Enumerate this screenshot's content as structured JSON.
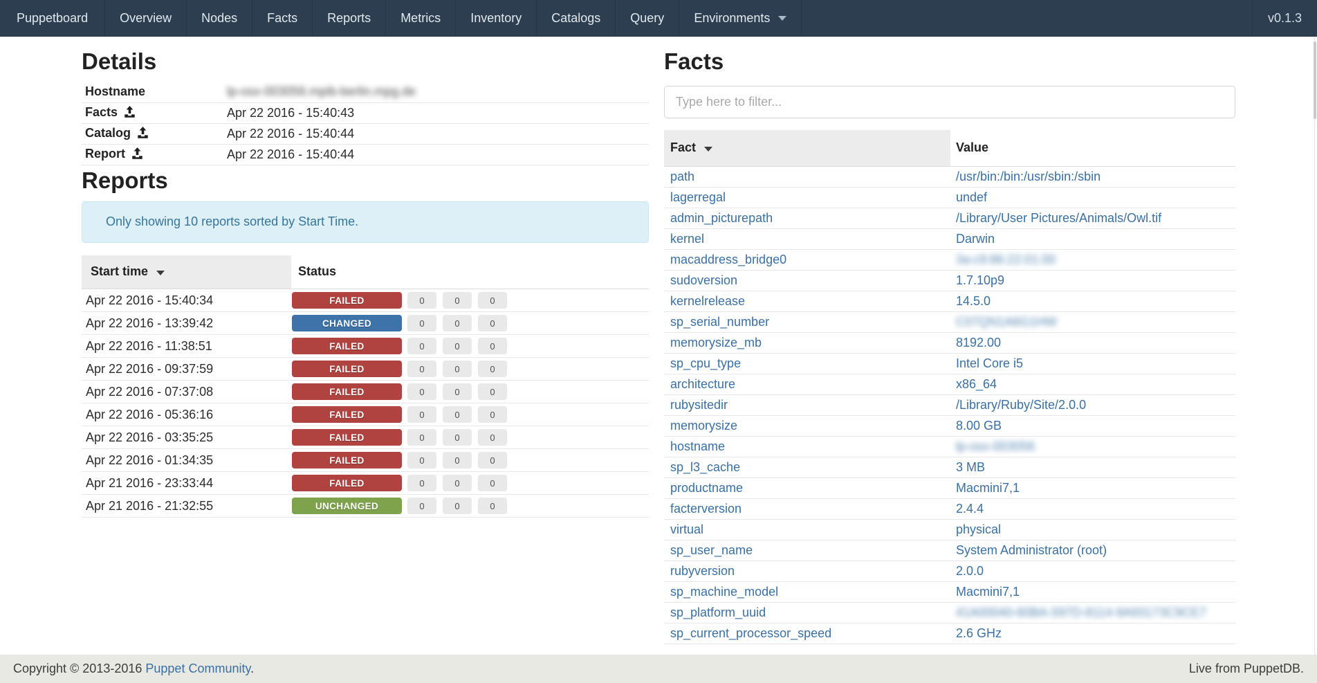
{
  "navbar": {
    "brand": "Puppetboard",
    "items": [
      "Overview",
      "Nodes",
      "Facts",
      "Reports",
      "Metrics",
      "Inventory",
      "Catalogs",
      "Query"
    ],
    "environments_label": "Environments",
    "version": "v0.1.3",
    "bg_color": "#2c3e50"
  },
  "details": {
    "title": "Details",
    "rows": [
      {
        "label": "Hostname",
        "value": "lp-osx-003056.mpib-berlin.mpg.de",
        "icon": false,
        "blur": true
      },
      {
        "label": "Facts",
        "value": "Apr 22 2016 - 15:40:43",
        "icon": true,
        "blur": false
      },
      {
        "label": "Catalog",
        "value": "Apr 22 2016 - 15:40:44",
        "icon": true,
        "blur": false
      },
      {
        "label": "Report",
        "value": "Apr 22 2016 - 15:40:44",
        "icon": true,
        "blur": false
      }
    ]
  },
  "reports": {
    "title": "Reports",
    "notice": "Only showing 10 reports sorted by Start Time.",
    "columns": {
      "start_time": "Start time",
      "status": "Status"
    },
    "status_colors": {
      "FAILED": "#b0433f",
      "CHANGED": "#3d73a9",
      "UNCHANGED": "#7fa24c"
    },
    "rows": [
      {
        "start_time": "Apr 22 2016 - 15:40:34",
        "status": "FAILED",
        "counts": [
          "0",
          "0",
          "0"
        ]
      },
      {
        "start_time": "Apr 22 2016 - 13:39:42",
        "status": "CHANGED",
        "counts": [
          "0",
          "0",
          "0"
        ]
      },
      {
        "start_time": "Apr 22 2016 - 11:38:51",
        "status": "FAILED",
        "counts": [
          "0",
          "0",
          "0"
        ]
      },
      {
        "start_time": "Apr 22 2016 - 09:37:59",
        "status": "FAILED",
        "counts": [
          "0",
          "0",
          "0"
        ]
      },
      {
        "start_time": "Apr 22 2016 - 07:37:08",
        "status": "FAILED",
        "counts": [
          "0",
          "0",
          "0"
        ]
      },
      {
        "start_time": "Apr 22 2016 - 05:36:16",
        "status": "FAILED",
        "counts": [
          "0",
          "0",
          "0"
        ]
      },
      {
        "start_time": "Apr 22 2016 - 03:35:25",
        "status": "FAILED",
        "counts": [
          "0",
          "0",
          "0"
        ]
      },
      {
        "start_time": "Apr 22 2016 - 01:34:35",
        "status": "FAILED",
        "counts": [
          "0",
          "0",
          "0"
        ]
      },
      {
        "start_time": "Apr 21 2016 - 23:33:44",
        "status": "FAILED",
        "counts": [
          "0",
          "0",
          "0"
        ]
      },
      {
        "start_time": "Apr 21 2016 - 21:32:55",
        "status": "UNCHANGED",
        "counts": [
          "0",
          "0",
          "0"
        ]
      }
    ]
  },
  "facts": {
    "title": "Facts",
    "filter_placeholder": "Type here to filter...",
    "columns": {
      "fact": "Fact",
      "value": "Value"
    },
    "rows": [
      {
        "fact": "path",
        "value": "/usr/bin:/bin:/usr/sbin:/sbin",
        "blur": false
      },
      {
        "fact": "lagerregal",
        "value": "undef",
        "blur": false
      },
      {
        "fact": "admin_picturepath",
        "value": "/Library/User Pictures/Animals/Owl.tif",
        "blur": false
      },
      {
        "fact": "kernel",
        "value": "Darwin",
        "blur": false
      },
      {
        "fact": "macaddress_bridge0",
        "value": "3a:c9:86:22:01:00",
        "blur": true
      },
      {
        "fact": "sudoversion",
        "value": "1.7.10p9",
        "blur": false
      },
      {
        "fact": "kernelrelease",
        "value": "14.5.0",
        "blur": false
      },
      {
        "fact": "sp_serial_number",
        "value": "C07QN1A6G1HW",
        "blur": true
      },
      {
        "fact": "memorysize_mb",
        "value": "8192.00",
        "blur": false
      },
      {
        "fact": "sp_cpu_type",
        "value": "Intel Core i5",
        "blur": false
      },
      {
        "fact": "architecture",
        "value": "x86_64",
        "blur": false
      },
      {
        "fact": "rubysitedir",
        "value": "/Library/Ruby/Site/2.0.0",
        "blur": false
      },
      {
        "fact": "memorysize",
        "value": "8.00 GB",
        "blur": false
      },
      {
        "fact": "hostname",
        "value": "lp-osx-003056",
        "blur": true
      },
      {
        "fact": "sp_l3_cache",
        "value": "3 MB",
        "blur": false
      },
      {
        "fact": "productname",
        "value": "Macmini7,1",
        "blur": false
      },
      {
        "fact": "facterversion",
        "value": "2.4.4",
        "blur": false
      },
      {
        "fact": "virtual",
        "value": "physical",
        "blur": false
      },
      {
        "fact": "sp_user_name",
        "value": "System Administrator (root)",
        "blur": false
      },
      {
        "fact": "rubyversion",
        "value": "2.0.0",
        "blur": false
      },
      {
        "fact": "sp_machine_model",
        "value": "Macmini7,1",
        "blur": false
      },
      {
        "fact": "sp_platform_uuid",
        "value": "41A00040-60BA-597D-8114-9A93173C9CE7",
        "blur": true
      },
      {
        "fact": "sp_current_processor_speed",
        "value": "2.6 GHz",
        "blur": false
      }
    ]
  },
  "footer": {
    "copyright_prefix": "Copyright © 2013-2016 ",
    "community_link": "Puppet Community",
    "copyright_suffix": ".",
    "right_text": "Live from PuppetDB."
  }
}
